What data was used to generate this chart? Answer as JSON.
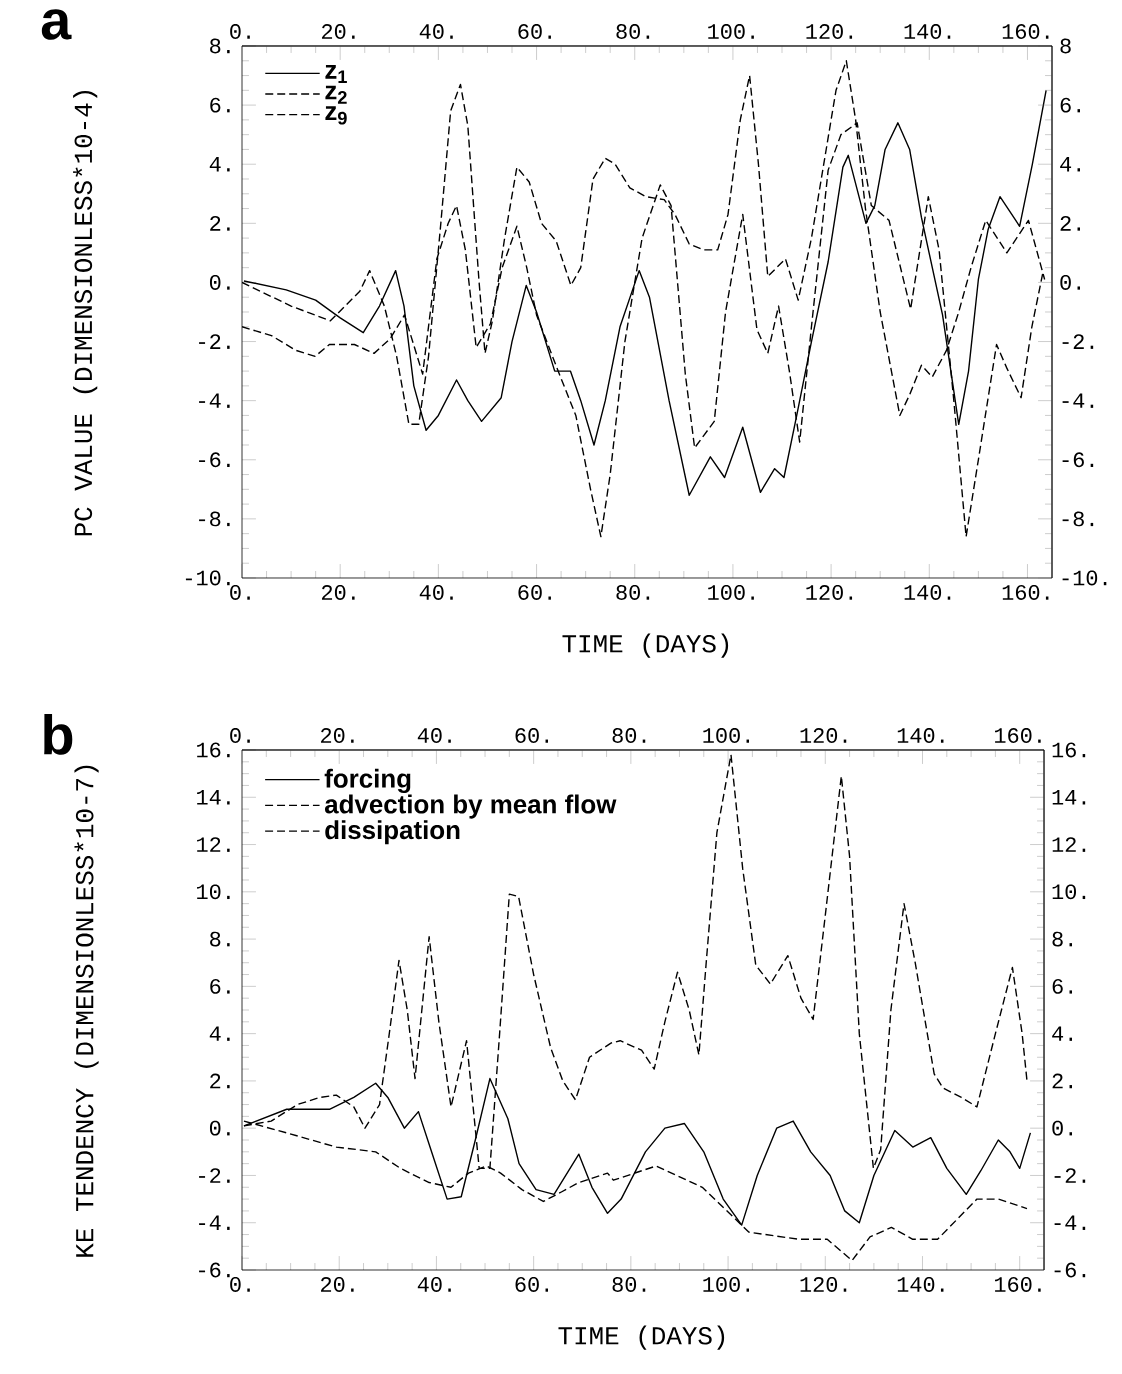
{
  "chart_data": [
    {
      "type": "line",
      "title": "a",
      "xlabel": "TIME (DAYS)",
      "ylabel": "PC VALUE (DIMENSIONLESS*10-4)",
      "xlim": [
        0,
        165
      ],
      "ylim": [
        -10,
        8
      ],
      "x2lim": [
        0,
        165
      ],
      "y2lim": [
        -10,
        8
      ],
      "xticks": [
        {
          "value": 0,
          "label": "0."
        },
        {
          "value": 20,
          "label": "20."
        },
        {
          "value": 40,
          "label": "40."
        },
        {
          "value": 60,
          "label": "60."
        },
        {
          "value": 80,
          "label": "80."
        },
        {
          "value": 100,
          "label": "100."
        },
        {
          "value": 120,
          "label": "120."
        },
        {
          "value": 140,
          "label": "140."
        },
        {
          "value": 160,
          "label": "160."
        }
      ],
      "x2ticks": [
        {
          "value": 0,
          "label": "0."
        },
        {
          "value": 20,
          "label": "20."
        },
        {
          "value": 40,
          "label": "40."
        },
        {
          "value": 60,
          "label": "60."
        },
        {
          "value": 80,
          "label": "80."
        },
        {
          "value": 100,
          "label": "100."
        },
        {
          "value": 120,
          "label": "120."
        },
        {
          "value": 140,
          "label": "140."
        },
        {
          "value": 160,
          "label": "160."
        }
      ],
      "yticks": [
        {
          "value": -10,
          "label": "-10."
        },
        {
          "value": -8,
          "label": "-8."
        },
        {
          "value": -6,
          "label": "-6."
        },
        {
          "value": -4,
          "label": "-4."
        },
        {
          "value": -2,
          "label": "-2."
        },
        {
          "value": 0,
          "label": "0."
        },
        {
          "value": 2,
          "label": "2."
        },
        {
          "value": 4,
          "label": "4."
        },
        {
          "value": 6,
          "label": "6."
        },
        {
          "value": 8,
          "label": "8."
        }
      ],
      "y2ticks": [
        {
          "value": -10,
          "label": "-10."
        },
        {
          "value": -8,
          "label": "-8."
        },
        {
          "value": -6,
          "label": "-6."
        },
        {
          "value": -4,
          "label": "-4."
        },
        {
          "value": -2,
          "label": "-2."
        },
        {
          "value": 0,
          "label": "0."
        },
        {
          "value": 2,
          "label": "2."
        },
        {
          "value": 4,
          "label": "4."
        },
        {
          "value": 6,
          "label": "6."
        },
        {
          "value": 8,
          "label": "8"
        }
      ],
      "legend": "top left",
      "series": [
        {
          "name": "z$_{1}$",
          "color": "#000000",
          "line_style": "solid",
          "x": [
            0.4,
            9,
            15,
            20,
            24.7,
            28,
            31.3,
            33,
            35,
            37.5,
            40,
            43.7,
            46,
            48.8,
            52.8,
            55,
            57.9,
            60,
            63.7,
            66.9,
            69,
            71.7,
            74,
            77,
            80.9,
            83,
            87,
            91.1,
            95.4,
            98.3,
            102,
            105.6,
            108.5,
            110.4,
            113,
            116,
            119.4,
            122.4,
            123.5,
            127.1,
            128.9,
            131,
            133.6,
            136,
            138.4,
            142.7,
            146,
            148,
            150,
            152,
            154.4,
            158.4,
            161,
            163.8
          ],
          "values": [
            0.05,
            -0.25,
            -0.6,
            -1.2,
            -1.7,
            -0.8,
            0.4,
            -0.8,
            -3.5,
            -5.0,
            -4.5,
            -3.3,
            -4.0,
            -4.7,
            -3.9,
            -2.0,
            -0.1,
            -1.0,
            -3.0,
            -3.0,
            -4.0,
            -5.5,
            -4.0,
            -1.5,
            0.4,
            -0.5,
            -4.0,
            -7.2,
            -5.9,
            -6.6,
            -4.9,
            -7.1,
            -6.3,
            -6.6,
            -4.5,
            -2.0,
            0.7,
            3.9,
            4.3,
            2.0,
            2.6,
            4.5,
            5.4,
            4.5,
            2.2,
            -1.1,
            -4.8,
            -3.0,
            0.1,
            1.8,
            2.9,
            1.9,
            4.0,
            6.5
          ]
        },
        {
          "name": "z$_{2}$",
          "color": "#000000",
          "line_style": "dashed",
          "x": [
            0,
            10,
            18,
            24,
            26,
            29,
            31.5,
            34,
            36,
            38,
            40.5,
            42.5,
            44.5,
            46,
            48.3,
            49.5,
            51,
            53.5,
            56,
            58.5,
            61,
            64,
            67,
            69,
            71.5,
            74,
            76,
            79,
            82.3,
            86,
            88.2,
            91.1,
            94,
            96.9,
            99,
            101.5,
            103.4,
            105.2,
            107.1,
            110.7,
            113.3,
            116,
            118.5,
            121,
            123.1,
            125,
            127,
            130,
            134,
            136,
            138.4,
            140.6,
            143.5,
            146,
            148.5,
            151.5,
            155.8,
            160.2,
            163.5
          ],
          "values": [
            0.0,
            -0.8,
            -1.3,
            -0.3,
            0.4,
            -0.8,
            -2.5,
            -4.8,
            -4.8,
            -2.5,
            2.0,
            5.8,
            6.7,
            5.3,
            0.0,
            -2.4,
            -1.3,
            1.5,
            3.9,
            3.4,
            2.0,
            1.4,
            -0.1,
            0.5,
            3.5,
            4.2,
            4.0,
            3.2,
            2.9,
            2.8,
            2.3,
            1.3,
            1.1,
            1.1,
            2.3,
            5.5,
            7.0,
            4.0,
            0.2,
            0.8,
            -0.6,
            1.5,
            4.0,
            6.5,
            7.5,
            5.5,
            2.5,
            -1.0,
            -4.5,
            -3.8,
            -2.8,
            -3.2,
            -2.3,
            -1.0,
            0.5,
            2.1,
            1.0,
            2.1,
            0.1
          ]
        },
        {
          "name": "z$_{9}$",
          "color": "#000000",
          "line_style": "dashed",
          "x": [
            0,
            6,
            11,
            14.9,
            17.8,
            22.9,
            26.9,
            30.2,
            33.1,
            36.8,
            39.7,
            42,
            43.7,
            45.5,
            47.7,
            50.6,
            53,
            56,
            58,
            60,
            64.4,
            68,
            71,
            73.1,
            75,
            78,
            81.5,
            85.2,
            87.4,
            90.3,
            92.2,
            96.2,
            98.5,
            102,
            104.9,
            107.1,
            109.3,
            111.5,
            113.6,
            116,
            119.4,
            122,
            125.3,
            128.2,
            131.8,
            136.2,
            139.8,
            142,
            145,
            147.5,
            150,
            153.7,
            155.8,
            158.7,
            160.9,
            163.1
          ],
          "values": [
            -1.5,
            -1.8,
            -2.3,
            -2.5,
            -2.1,
            -2.1,
            -2.4,
            -1.9,
            -1.1,
            -3.1,
            0.8,
            2.0,
            2.6,
            1.1,
            -2.2,
            -1.4,
            0.5,
            1.9,
            0.5,
            -1.1,
            -3.0,
            -4.5,
            -7.0,
            -8.6,
            -6.5,
            -2.0,
            1.5,
            3.3,
            2.6,
            -3.1,
            -5.6,
            -4.7,
            -1.0,
            2.3,
            -1.6,
            -2.4,
            -0.8,
            -3.0,
            -5.4,
            -1.5,
            3.8,
            5.0,
            5.4,
            2.6,
            2.1,
            -0.9,
            2.9,
            1.1,
            -4.0,
            -8.6,
            -6.0,
            -2.1,
            -2.9,
            -3.9,
            -1.5,
            0.3
          ]
        }
      ]
    },
    {
      "type": "line",
      "title": "b",
      "xlabel": "TIME (DAYS)",
      "ylabel": "KE TENDENCY (DIMENSIONLESS*10-7)",
      "xlim": [
        0,
        165
      ],
      "ylim": [
        -6,
        16
      ],
      "x2lim": [
        0,
        165
      ],
      "y2lim": [
        -6,
        16
      ],
      "xticks": [
        {
          "value": 0,
          "label": "0."
        },
        {
          "value": 20,
          "label": "20."
        },
        {
          "value": 40,
          "label": "40."
        },
        {
          "value": 60,
          "label": "60."
        },
        {
          "value": 80,
          "label": "80."
        },
        {
          "value": 100,
          "label": "100."
        },
        {
          "value": 120,
          "label": "120."
        },
        {
          "value": 140,
          "label": "140."
        },
        {
          "value": 160,
          "label": "160."
        }
      ],
      "x2ticks": [
        {
          "value": 0,
          "label": "0."
        },
        {
          "value": 20,
          "label": "20."
        },
        {
          "value": 40,
          "label": "40."
        },
        {
          "value": 60,
          "label": "60."
        },
        {
          "value": 80,
          "label": "80."
        },
        {
          "value": 100,
          "label": "100."
        },
        {
          "value": 120,
          "label": "120."
        },
        {
          "value": 140,
          "label": "140."
        },
        {
          "value": 160,
          "label": "160."
        }
      ],
      "yticks": [
        {
          "value": -6,
          "label": "-6."
        },
        {
          "value": -4,
          "label": "-4."
        },
        {
          "value": -2,
          "label": "-2."
        },
        {
          "value": 0,
          "label": "0."
        },
        {
          "value": 2,
          "label": "2."
        },
        {
          "value": 4,
          "label": "4."
        },
        {
          "value": 6,
          "label": "6."
        },
        {
          "value": 8,
          "label": "8."
        },
        {
          "value": 10,
          "label": "10."
        },
        {
          "value": 12,
          "label": "12."
        },
        {
          "value": 14,
          "label": "14."
        },
        {
          "value": 16,
          "label": "16."
        }
      ],
      "y2ticks": [
        {
          "value": -6,
          "label": "-6."
        },
        {
          "value": -4,
          "label": "-4."
        },
        {
          "value": -2,
          "label": "-2."
        },
        {
          "value": 0,
          "label": "0."
        },
        {
          "value": 2,
          "label": "2."
        },
        {
          "value": 4,
          "label": "4."
        },
        {
          "value": 6,
          "label": "6."
        },
        {
          "value": 8,
          "label": "8."
        },
        {
          "value": 10,
          "label": "10."
        },
        {
          "value": 12,
          "label": "12."
        },
        {
          "value": 14,
          "label": "14."
        },
        {
          "value": 16,
          "label": "16."
        }
      ],
      "legend": "top left",
      "series": [
        {
          "name": "forcing",
          "color": "#000000",
          "line_style": "solid",
          "x": [
            0.4,
            9.2,
            18,
            23,
            27.5,
            30,
            33.4,
            36.3,
            39,
            42.2,
            45.1,
            48,
            51,
            54.7,
            57,
            60.5,
            64.2,
            69.3,
            72,
            75.2,
            78,
            83,
            87,
            91,
            95,
            99,
            102.8,
            106,
            110,
            113.4,
            117,
            121,
            124,
            127,
            130,
            134.3,
            138,
            141.7,
            145,
            149,
            152,
            155.6,
            158,
            160,
            162.2
          ],
          "values": [
            0.1,
            0.8,
            0.8,
            1.3,
            1.9,
            1.3,
            0.0,
            0.7,
            -1.0,
            -3.0,
            -2.9,
            -0.5,
            2.1,
            0.4,
            -1.5,
            -2.6,
            -2.8,
            -1.1,
            -2.5,
            -3.6,
            -3.0,
            -1.0,
            0.0,
            0.2,
            -1.0,
            -3.0,
            -4.1,
            -2.0,
            0.0,
            0.3,
            -1.0,
            -2.0,
            -3.5,
            -4.0,
            -2.0,
            -0.1,
            -0.8,
            -0.4,
            -1.7,
            -2.8,
            -1.8,
            -0.5,
            -1.0,
            -1.7,
            -0.2
          ]
        },
        {
          "name": "advection by mean flow",
          "color": "#000000",
          "line_style": "dashed",
          "x": [
            0.4,
            6,
            11.4,
            16,
            19.4,
            23,
            25.3,
            28.3,
            30.3,
            32.3,
            34,
            35.6,
            37,
            38.5,
            40.5,
            43,
            46.2,
            48.8,
            51,
            53,
            55,
            56.9,
            60,
            63.5,
            66,
            68.6,
            71.5,
            75.9,
            77.8,
            82.2,
            84.8,
            87,
            89.6,
            92,
            94,
            95.5,
            97.7,
            100.6,
            103,
            105.7,
            108.7,
            112.3,
            115,
            117.5,
            120,
            123.3,
            125,
            127,
            129.9,
            131.4,
            133.5,
            136.2,
            138.5,
            142.4,
            144.2,
            148,
            151.2,
            155,
            158.5,
            160.5,
            161.5
          ],
          "values": [
            0.1,
            0.3,
            1.0,
            1.3,
            1.4,
            0.9,
            0.0,
            1.0,
            4.0,
            7.1,
            5.0,
            2.1,
            5.0,
            8.1,
            4.5,
            0.9,
            3.7,
            -1.7,
            -1.7,
            4.0,
            9.9,
            9.8,
            6.5,
            3.4,
            2.0,
            1.2,
            3.0,
            3.6,
            3.7,
            3.3,
            2.5,
            4.5,
            6.6,
            5.0,
            3.1,
            7.0,
            12.5,
            15.8,
            11.0,
            6.9,
            6.1,
            7.3,
            5.5,
            4.6,
            9.0,
            14.9,
            11.5,
            4.0,
            -1.7,
            -0.9,
            5.0,
            9.5,
            7.0,
            2.3,
            1.7,
            1.3,
            0.9,
            4.0,
            6.8,
            4.0,
            2.0
          ]
        },
        {
          "name": "dissipation",
          "color": "#000000",
          "line_style": "dashed",
          "x": [
            0.4,
            9.2,
            19.4,
            27.5,
            32.6,
            38.5,
            43,
            46.6,
            50.3,
            53.2,
            57.6,
            62,
            65.7,
            69.3,
            75.2,
            76.4,
            85.2,
            94.7,
            104.3,
            114.5,
            120.4,
            125.5,
            129.2,
            133.6,
            138,
            143.1,
            151.2,
            155.6,
            161.5
          ],
          "values": [
            0.3,
            -0.2,
            -0.8,
            -1.0,
            -1.7,
            -2.3,
            -2.5,
            -1.9,
            -1.6,
            -1.9,
            -2.6,
            -3.1,
            -2.7,
            -2.3,
            -1.9,
            -2.2,
            -1.6,
            -2.5,
            -4.4,
            -4.7,
            -4.7,
            -5.6,
            -4.6,
            -4.2,
            -4.7,
            -4.7,
            -3.0,
            -3.0,
            -3.4
          ]
        }
      ]
    }
  ]
}
